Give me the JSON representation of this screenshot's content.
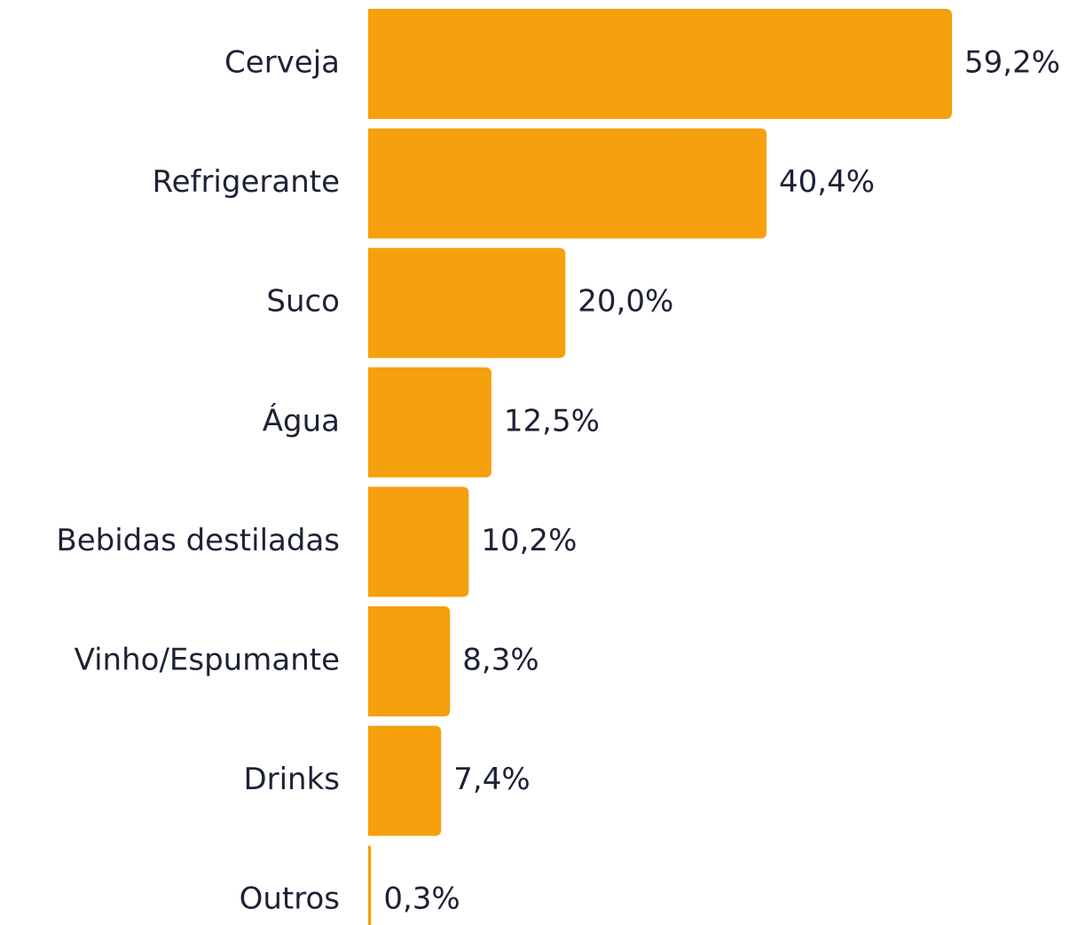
{
  "chart_data": {
    "type": "bar",
    "orientation": "horizontal",
    "categories": [
      "Cerveja",
      "Refrigerante",
      "Suco",
      "Água",
      "Bebidas destiladas",
      "Vinho/Espumante",
      "Drinks",
      "Outros"
    ],
    "values": [
      59.2,
      40.4,
      20.0,
      12.5,
      10.2,
      8.3,
      7.4,
      0.3
    ],
    "value_labels": [
      "59,2%",
      "40,4%",
      "20,0%",
      "12,5%",
      "10,2%",
      "8,3%",
      "7,4%",
      "0,3%"
    ],
    "color": "#f5a00c"
  }
}
